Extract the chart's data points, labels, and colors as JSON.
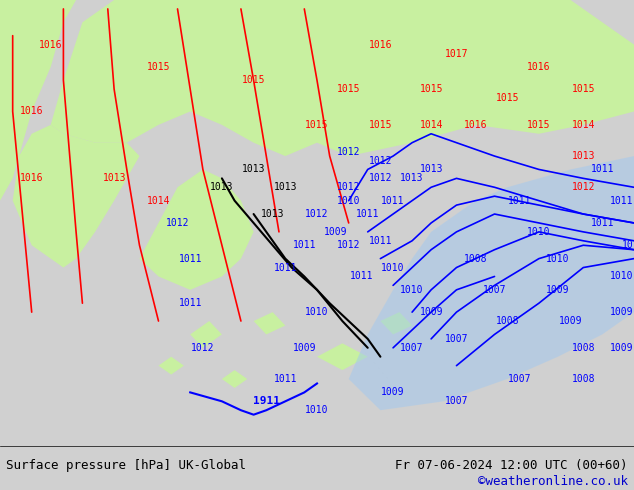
{
  "title_left": "Surface pressure [hPa] UK-Global",
  "title_right": "Fr 07-06-2024 12:00 UTC (00+60)",
  "credit": "©weatheronline.co.uk",
  "bg_color": "#d0d0d0",
  "map_bg_color": "#e8e8e8",
  "green_fill": "#c8f0a0",
  "blue_fill": "#a0c8f0",
  "contour_color_red": "#ff0000",
  "contour_color_black": "#000000",
  "contour_color_blue": "#0000ff",
  "label_fontsize": 9,
  "footer_fontsize": 9,
  "figsize": [
    6.34,
    4.9
  ],
  "dpi": 100
}
